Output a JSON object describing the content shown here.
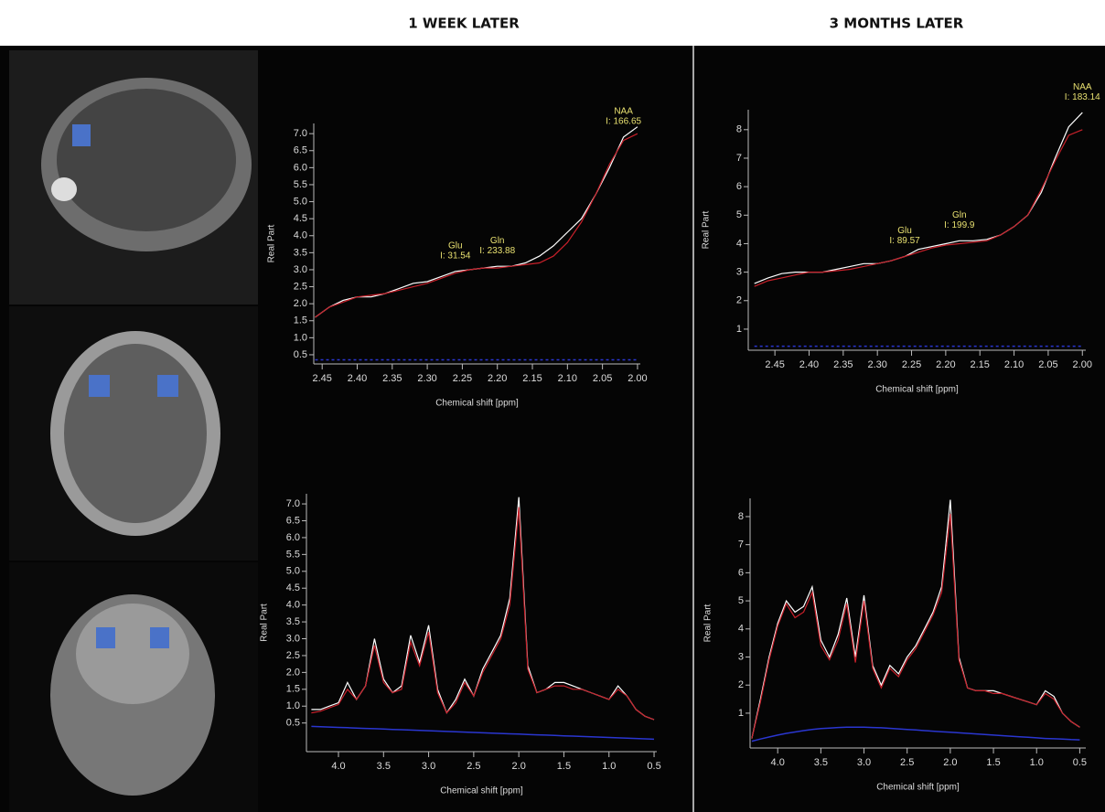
{
  "headings": [
    "1 WEEK LATER",
    "3 MONTHS LATER"
  ],
  "chart_data": [
    {
      "type": "line",
      "x_label": "Chemical shift [ppm]",
      "y_label": "Real Part",
      "xlim": [
        2.462,
        1.996
      ],
      "ylim": [
        0.23,
        7.3
      ],
      "xticks": [
        2.45,
        {
          "value": 2.4,
          "label": "2.40"
        },
        2.35,
        {
          "value": 2.3,
          "label": "2.30"
        },
        2.25,
        {
          "value": 2.2,
          "label": "2.20"
        },
        2.15,
        {
          "value": 2.1,
          "label": "2.10"
        },
        2.05,
        {
          "value": 2,
          "label": "2.00"
        }
      ],
      "yticks": [
        0.5,
        {
          "value": 1,
          "label": "1.0"
        },
        1.5,
        {
          "value": 2,
          "label": "2.0"
        },
        2.5,
        {
          "value": 3,
          "label": "3.0"
        },
        3.5,
        {
          "value": 4,
          "label": "4.0"
        },
        4.5,
        {
          "value": 5,
          "label": "5.0"
        },
        5.5,
        {
          "value": 6,
          "label": "6.0"
        },
        6.5,
        {
          "value": 7,
          "label": "7.0"
        }
      ],
      "x": [
        2.46,
        2.44,
        2.42,
        2.4,
        2.38,
        2.36,
        2.34,
        2.32,
        2.3,
        2.28,
        2.26,
        2.24,
        2.22,
        2.2,
        2.18,
        2.16,
        2.14,
        2.12,
        2.1,
        2.08,
        2.06,
        2.04,
        2.02,
        2.0
      ],
      "series": [
        {
          "color": "#ffffff",
          "values": [
            1.6,
            1.9,
            2.1,
            2.2,
            2.2,
            2.3,
            2.45,
            2.6,
            2.65,
            2.8,
            2.95,
            3.0,
            3.05,
            3.1,
            3.1,
            3.2,
            3.4,
            3.7,
            4.1,
            4.5,
            5.2,
            6.0,
            6.9,
            7.2
          ]
        },
        {
          "color": "#c8202a",
          "values": [
            1.6,
            1.9,
            2.05,
            2.2,
            2.25,
            2.3,
            2.4,
            2.5,
            2.6,
            2.75,
            2.9,
            3.0,
            3.05,
            3.05,
            3.1,
            3.15,
            3.2,
            3.4,
            3.8,
            4.4,
            5.2,
            6.1,
            6.8,
            7.0
          ]
        },
        {
          "color": "#2a36d0",
          "values": [
            0.35,
            0.35,
            0.35,
            0.35,
            0.35,
            0.35,
            0.35,
            0.35,
            0.35,
            0.35,
            0.35,
            0.35,
            0.35,
            0.35,
            0.35,
            0.35,
            0.35,
            0.35,
            0.35,
            0.35,
            0.35,
            0.35,
            0.35,
            0.35
          ]
        }
      ],
      "annotations": [
        {
          "label": "Glu",
          "text": "I: 31.54",
          "x": 2.26
        },
        {
          "label": "Gln",
          "text": "I: 233.88",
          "x": 2.2
        },
        {
          "label": "NAA",
          "text": "I: 166.65",
          "x": 2.02
        }
      ]
    },
    {
      "type": "line",
      "x_label": "Chemical shift [ppm]",
      "y_label": "Real Part",
      "xlim": [
        2.489,
        1.995
      ],
      "ylim": [
        0.26,
        8.7
      ],
      "xticks": [
        2.45,
        {
          "value": 2.4,
          "label": "2.40"
        },
        2.35,
        {
          "value": 2.3,
          "label": "2.30"
        },
        2.25,
        {
          "value": 2.2,
          "label": "2.20"
        },
        2.15,
        {
          "value": 2.1,
          "label": "2.10"
        },
        2.05,
        {
          "value": 2,
          "label": "2.00"
        }
      ],
      "yticks": [
        1,
        2,
        3,
        4,
        5,
        6,
        7,
        8
      ],
      "x": [
        2.48,
        2.46,
        2.44,
        2.42,
        2.4,
        2.38,
        2.36,
        2.34,
        2.32,
        2.3,
        2.28,
        2.26,
        2.24,
        2.22,
        2.2,
        2.18,
        2.16,
        2.14,
        2.12,
        2.1,
        2.08,
        2.06,
        2.04,
        2.02,
        2.0
      ],
      "series": [
        {
          "color": "#ffffff",
          "values": [
            2.6,
            2.8,
            2.95,
            3.0,
            3.0,
            3.0,
            3.1,
            3.2,
            3.3,
            3.3,
            3.4,
            3.55,
            3.8,
            3.9,
            4.0,
            4.1,
            4.1,
            4.15,
            4.3,
            4.6,
            5.0,
            5.8,
            7.0,
            8.1,
            8.6
          ]
        },
        {
          "color": "#c8202a",
          "values": [
            2.5,
            2.7,
            2.8,
            2.9,
            3.0,
            3.0,
            3.05,
            3.1,
            3.2,
            3.3,
            3.4,
            3.55,
            3.7,
            3.85,
            3.95,
            4.0,
            4.05,
            4.1,
            4.3,
            4.6,
            5.0,
            5.9,
            6.9,
            7.8,
            8.0
          ]
        },
        {
          "color": "#2a36d0",
          "values": [
            0.4,
            0.4,
            0.4,
            0.4,
            0.4,
            0.4,
            0.4,
            0.4,
            0.4,
            0.4,
            0.4,
            0.4,
            0.4,
            0.4,
            0.4,
            0.4,
            0.4,
            0.4,
            0.4,
            0.4,
            0.4,
            0.4,
            0.4,
            0.4,
            0.4
          ]
        }
      ],
      "annotations": [
        {
          "label": "Glu",
          "text": "I: 89.57",
          "x": 2.26
        },
        {
          "label": "Gln",
          "text": "I: 199.9",
          "x": 2.18
        },
        {
          "label": "NAA",
          "text": "I: 183.14",
          "x": 2.0
        }
      ]
    },
    {
      "type": "line",
      "x_label": "Chemical shift [ppm]",
      "y_label": "Real Part",
      "xlim": [
        4.355,
        0.47
      ],
      "ylim": [
        -0.35,
        7.3
      ],
      "xticks": [
        {
          "value": 4,
          "label": "4.0"
        },
        3.5,
        {
          "value": 3,
          "label": "3.0"
        },
        2.5,
        {
          "value": 2,
          "label": "2.0"
        },
        1.5,
        {
          "value": 1,
          "label": "1.0"
        },
        0.5
      ],
      "yticks": [
        0.5,
        {
          "value": 1,
          "label": "1.0"
        },
        1.5,
        {
          "value": 2,
          "label": "2.0"
        },
        2.5,
        {
          "value": 3,
          "label": "3.0"
        },
        3.5,
        {
          "value": 4,
          "label": "4.0"
        },
        4.5,
        {
          "value": 5,
          "label": "5.0"
        },
        5.5,
        {
          "value": 6,
          "label": "6.0"
        },
        6.5,
        {
          "value": 7,
          "label": "7.0"
        }
      ],
      "x": [
        4.3,
        4.2,
        4.1,
        4.0,
        3.9,
        3.8,
        3.7,
        3.6,
        3.5,
        3.4,
        3.3,
        3.2,
        3.1,
        3.0,
        2.9,
        2.8,
        2.7,
        2.6,
        2.5,
        2.4,
        2.3,
        2.2,
        2.1,
        2.0,
        1.9,
        1.8,
        1.7,
        1.6,
        1.5,
        1.4,
        1.3,
        1.2,
        1.1,
        1.0,
        0.9,
        0.8,
        0.7,
        0.6,
        0.5
      ],
      "series": [
        {
          "color": "#ffffff",
          "values": [
            0.9,
            0.9,
            1.0,
            1.1,
            1.7,
            1.2,
            1.6,
            3.0,
            1.8,
            1.4,
            1.6,
            3.1,
            2.3,
            3.4,
            1.5,
            0.8,
            1.2,
            1.8,
            1.3,
            2.1,
            2.6,
            3.1,
            4.2,
            7.2,
            2.2,
            1.4,
            1.5,
            1.7,
            1.7,
            1.6,
            1.5,
            1.4,
            1.3,
            1.2,
            1.6,
            1.3,
            0.9,
            0.7,
            0.6
          ]
        },
        {
          "color": "#c8202a",
          "values": [
            0.8,
            0.85,
            0.95,
            1.05,
            1.5,
            1.2,
            1.6,
            2.8,
            1.7,
            1.4,
            1.5,
            2.9,
            2.2,
            3.2,
            1.4,
            0.8,
            1.1,
            1.7,
            1.3,
            2.0,
            2.5,
            3.0,
            4.0,
            6.9,
            2.1,
            1.4,
            1.5,
            1.6,
            1.6,
            1.5,
            1.5,
            1.4,
            1.3,
            1.2,
            1.5,
            1.3,
            0.9,
            0.7,
            0.6
          ]
        },
        {
          "color": "#2a36d0",
          "values": [
            0.4,
            0.39,
            0.38,
            0.37,
            0.36,
            0.35,
            0.34,
            0.33,
            0.32,
            0.31,
            0.3,
            0.29,
            0.28,
            0.27,
            0.26,
            0.25,
            0.24,
            0.23,
            0.22,
            0.21,
            0.2,
            0.19,
            0.18,
            0.17,
            0.16,
            0.15,
            0.14,
            0.13,
            0.12,
            0.11,
            0.1,
            0.09,
            0.08,
            0.07,
            0.06,
            0.05,
            0.04,
            0.03,
            0.02
          ]
        }
      ],
      "annotations": []
    },
    {
      "type": "line",
      "x_label": "Chemical shift [ppm]",
      "y_label": "Real Part",
      "xlim": [
        4.32,
        0.43
      ],
      "ylim": [
        -0.24,
        8.65
      ],
      "xticks": [
        {
          "value": 4,
          "label": "4.0"
        },
        3.5,
        {
          "value": 3,
          "label": "3.0"
        },
        2.5,
        {
          "value": 2,
          "label": "2.0"
        },
        1.5,
        {
          "value": 1,
          "label": "1.0"
        },
        0.5
      ],
      "yticks": [
        1,
        2,
        3,
        4,
        5,
        6,
        7,
        8
      ],
      "x": [
        4.3,
        4.2,
        4.1,
        4.0,
        3.9,
        3.8,
        3.7,
        3.6,
        3.5,
        3.4,
        3.3,
        3.2,
        3.1,
        3.0,
        2.9,
        2.8,
        2.7,
        2.6,
        2.5,
        2.4,
        2.3,
        2.2,
        2.1,
        2.0,
        1.9,
        1.8,
        1.7,
        1.6,
        1.5,
        1.4,
        1.3,
        1.2,
        1.1,
        1.0,
        0.9,
        0.8,
        0.7,
        0.6,
        0.5
      ],
      "series": [
        {
          "color": "#ffffff",
          "values": [
            0.1,
            1.5,
            3.0,
            4.2,
            5.0,
            4.6,
            4.8,
            5.5,
            3.6,
            3.0,
            3.8,
            5.1,
            3.0,
            5.2,
            2.7,
            2.0,
            2.7,
            2.4,
            3.0,
            3.4,
            4.0,
            4.6,
            5.5,
            8.6,
            3.0,
            1.9,
            1.8,
            1.8,
            1.8,
            1.7,
            1.6,
            1.5,
            1.4,
            1.3,
            1.8,
            1.6,
            1.0,
            0.7,
            0.5
          ]
        },
        {
          "color": "#c8202a",
          "values": [
            0.1,
            1.4,
            2.9,
            4.1,
            4.9,
            4.4,
            4.6,
            5.3,
            3.4,
            2.9,
            3.6,
            4.9,
            2.8,
            5.0,
            2.6,
            1.9,
            2.6,
            2.3,
            2.9,
            3.3,
            3.9,
            4.5,
            5.3,
            8.1,
            2.9,
            1.9,
            1.8,
            1.8,
            1.7,
            1.7,
            1.6,
            1.5,
            1.4,
            1.3,
            1.7,
            1.5,
            1.0,
            0.7,
            0.5
          ]
        },
        {
          "color": "#2a36d0",
          "values": [
            0.0,
            0.08,
            0.15,
            0.22,
            0.28,
            0.33,
            0.38,
            0.42,
            0.45,
            0.47,
            0.49,
            0.5,
            0.5,
            0.5,
            0.49,
            0.48,
            0.46,
            0.44,
            0.42,
            0.4,
            0.38,
            0.36,
            0.34,
            0.32,
            0.3,
            0.28,
            0.26,
            0.24,
            0.22,
            0.2,
            0.18,
            0.16,
            0.14,
            0.12,
            0.1,
            0.09,
            0.08,
            0.06,
            0.05
          ]
        }
      ],
      "annotations": []
    }
  ]
}
